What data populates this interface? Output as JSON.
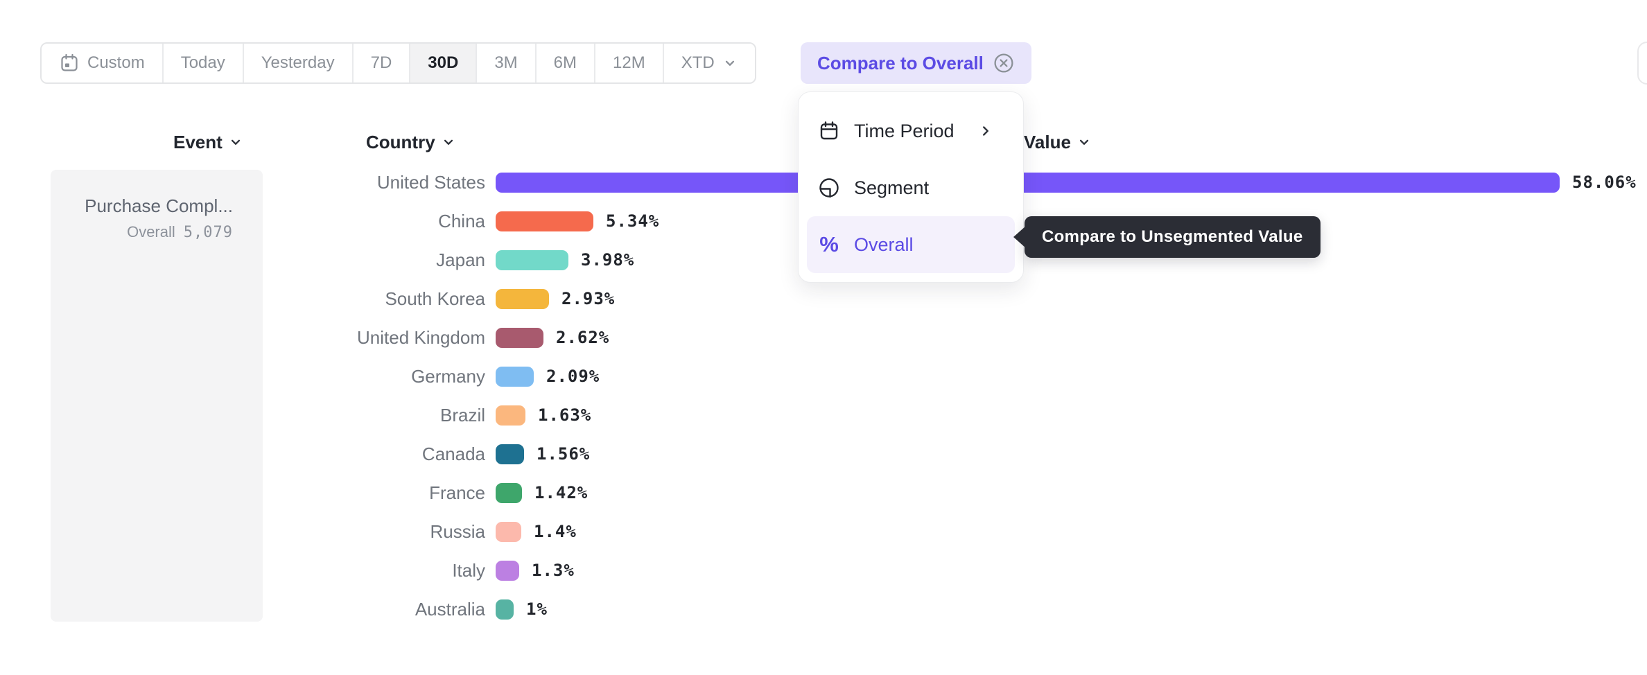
{
  "toolbar": {
    "date_ranges": [
      {
        "label": "Custom",
        "icon": "calendar",
        "selected": false
      },
      {
        "label": "Today",
        "selected": false
      },
      {
        "label": "Yesterday",
        "selected": false
      },
      {
        "label": "7D",
        "selected": false
      },
      {
        "label": "30D",
        "selected": true
      },
      {
        "label": "3M",
        "selected": false
      },
      {
        "label": "6M",
        "selected": false
      },
      {
        "label": "12M",
        "selected": false
      },
      {
        "label": "XTD",
        "selected": false,
        "chevron": "down"
      }
    ],
    "compare_chip": {
      "label": "Compare to Overall",
      "dismiss_icon": "circle-x-icon"
    }
  },
  "columns": {
    "event": "Event",
    "country": "Country",
    "value": "Value"
  },
  "event_panel": {
    "event_name": "Purchase Compl...",
    "overall_label": "Overall",
    "overall_value": "5,079"
  },
  "chart_data": {
    "type": "bar",
    "orientation": "horizontal",
    "title": "",
    "xlabel": "Value",
    "ylabel": "Country",
    "value_unit": "%",
    "axis_max": 58.06,
    "categories": [
      "United States",
      "China",
      "Japan",
      "South Korea",
      "United Kingdom",
      "Germany",
      "Brazil",
      "Canada",
      "France",
      "Russia",
      "Italy",
      "Australia"
    ],
    "values": [
      58.06,
      5.34,
      3.98,
      2.93,
      2.62,
      2.09,
      1.63,
      1.56,
      1.42,
      1.4,
      1.3,
      1.0
    ],
    "value_labels": [
      "58.06%",
      "5.34%",
      "3.98%",
      "2.93%",
      "2.62%",
      "2.09%",
      "1.63%",
      "1.56%",
      "1.42%",
      "1.4%",
      "1.3%",
      "1%"
    ],
    "bar_colors": [
      "#7656f9",
      "#f56a4d",
      "#72d9c9",
      "#f4b63c",
      "#a85a6e",
      "#7fbdf2",
      "#fbb77e",
      "#1e7191",
      "#3ea66b",
      "#fcb9ac",
      "#bc80e2",
      "#57b3a3"
    ]
  },
  "menu": {
    "items": [
      {
        "label": "Time Period",
        "icon": "calendar-icon",
        "has_submenu": true,
        "selected": false
      },
      {
        "label": "Segment",
        "icon": "segment-icon",
        "has_submenu": false,
        "selected": false
      },
      {
        "label": "Overall",
        "icon": "percent-icon",
        "has_submenu": false,
        "selected": true
      }
    ]
  },
  "tooltip": {
    "text": "Compare to Unsegmented Value"
  },
  "colors": {
    "accent": "#5b4be4",
    "chip_bg": "#e8e5fb",
    "selected_range_bg": "#f2f2f3",
    "panel_bg": "#f4f4f5",
    "menu_highlight_bg": "#f4f1fc",
    "tooltip_bg": "#2b2d35",
    "label_gray": "#70757d",
    "muted_gray": "#8b9097"
  }
}
